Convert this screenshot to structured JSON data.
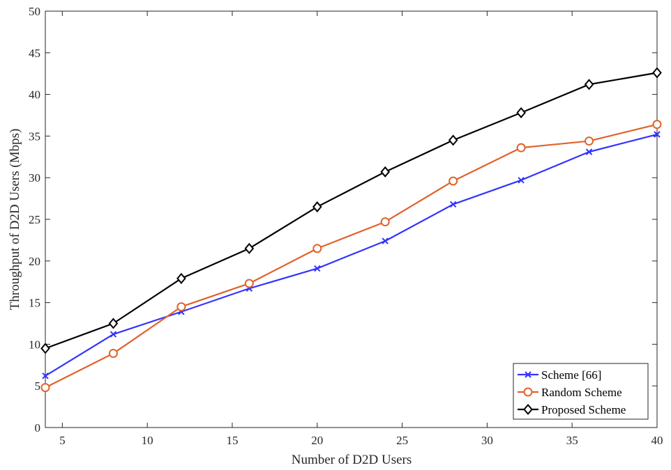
{
  "chart_data": {
    "type": "line",
    "xlabel": "Number of D2D Users",
    "ylabel": "Throughput of D2D Users (Mbps)",
    "xlim": [
      4,
      40
    ],
    "ylim": [
      0,
      50
    ],
    "xticks": [
      "5",
      "10",
      "15",
      "20",
      "25",
      "30",
      "35",
      "40"
    ],
    "yticks": [
      "0",
      "5",
      "10",
      "15",
      "20",
      "25",
      "30",
      "35",
      "40",
      "45",
      "50"
    ],
    "grid": false,
    "legend_position": "bottom-right",
    "x": [
      4,
      8,
      12,
      16,
      20,
      24,
      28,
      32,
      36,
      40
    ],
    "series": [
      {
        "name": "Scheme [66]",
        "color": "#3333ff",
        "marker": "x",
        "values": [
          6.2,
          11.2,
          13.9,
          16.7,
          19.1,
          22.4,
          26.8,
          29.7,
          33.1,
          35.2
        ]
      },
      {
        "name": "Random Scheme",
        "color": "#e0622a",
        "marker": "circle",
        "values": [
          4.8,
          8.9,
          14.5,
          17.3,
          21.5,
          24.7,
          29.6,
          33.6,
          34.4,
          36.4
        ]
      },
      {
        "name": "Proposed Scheme",
        "color": "#000000",
        "marker": "diamond",
        "values": [
          9.5,
          12.5,
          17.9,
          21.5,
          26.5,
          30.7,
          34.5,
          37.8,
          41.2,
          42.6
        ]
      }
    ]
  }
}
